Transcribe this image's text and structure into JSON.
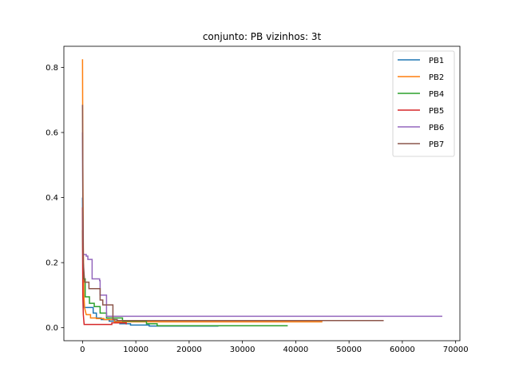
{
  "chart_data": {
    "type": "line",
    "title": "conjunto: PB vizinhos: 3t",
    "xlabel": "",
    "ylabel": "",
    "xlim": [
      -3500,
      70800
    ],
    "ylim": [
      -0.04,
      0.865
    ],
    "xticks": [
      0,
      10000,
      20000,
      30000,
      40000,
      50000,
      60000,
      70000
    ],
    "xtick_labels": [
      "0",
      "10000",
      "20000",
      "30000",
      "40000",
      "50000",
      "60000",
      "70000"
    ],
    "yticks": [
      0.0,
      0.2,
      0.4,
      0.6,
      0.8
    ],
    "ytick_labels": [
      "0.0",
      "0.2",
      "0.4",
      "0.6",
      "0.8"
    ],
    "grid": false,
    "legend_position": "top-right",
    "series": [
      {
        "name": "PB1",
        "color": "#1f77b4",
        "points": [
          [
            0,
            0.4
          ],
          [
            60,
            0.15
          ],
          [
            150,
            0.08
          ],
          [
            300,
            0.062
          ],
          [
            2000,
            0.062
          ],
          [
            2000,
            0.045
          ],
          [
            2600,
            0.045
          ],
          [
            2600,
            0.03
          ],
          [
            3500,
            0.03
          ],
          [
            3500,
            0.025
          ],
          [
            5000,
            0.025
          ],
          [
            5000,
            0.02
          ],
          [
            7000,
            0.02
          ],
          [
            7000,
            0.012
          ],
          [
            9000,
            0.012
          ],
          [
            9000,
            0.008
          ],
          [
            12500,
            0.008
          ],
          [
            12500,
            0.005
          ],
          [
            25500,
            0.005
          ]
        ]
      },
      {
        "name": "PB2",
        "color": "#ff7f0e",
        "points": [
          [
            0,
            0.825
          ],
          [
            60,
            0.5
          ],
          [
            150,
            0.25
          ],
          [
            250,
            0.1
          ],
          [
            400,
            0.06
          ],
          [
            700,
            0.04
          ],
          [
            1500,
            0.04
          ],
          [
            1500,
            0.03
          ],
          [
            2600,
            0.03
          ],
          [
            2600,
            0.028
          ],
          [
            4000,
            0.028
          ],
          [
            4000,
            0.025
          ],
          [
            6000,
            0.025
          ],
          [
            6000,
            0.018
          ],
          [
            45000,
            0.018
          ]
        ]
      },
      {
        "name": "PB4",
        "color": "#2ca02c",
        "points": [
          [
            0,
            0.3
          ],
          [
            80,
            0.2
          ],
          [
            200,
            0.15
          ],
          [
            500,
            0.15
          ],
          [
            500,
            0.095
          ],
          [
            1300,
            0.095
          ],
          [
            1300,
            0.075
          ],
          [
            2200,
            0.075
          ],
          [
            2200,
            0.065
          ],
          [
            3300,
            0.065
          ],
          [
            3300,
            0.045
          ],
          [
            4500,
            0.045
          ],
          [
            4500,
            0.03
          ],
          [
            7500,
            0.03
          ],
          [
            7500,
            0.02
          ],
          [
            12000,
            0.02
          ],
          [
            12000,
            0.012
          ],
          [
            14000,
            0.012
          ],
          [
            14000,
            0.006
          ],
          [
            38500,
            0.006
          ]
        ]
      },
      {
        "name": "PB5",
        "color": "#d62728",
        "points": [
          [
            0,
            0.37
          ],
          [
            50,
            0.1
          ],
          [
            150,
            0.04
          ],
          [
            300,
            0.01
          ],
          [
            5500,
            0.01
          ],
          [
            5500,
            0.015
          ],
          [
            8200,
            0.015
          ],
          [
            8200,
            0.01
          ]
        ]
      },
      {
        "name": "PB6",
        "color": "#9467bd",
        "points": [
          [
            0,
            0.6
          ],
          [
            60,
            0.35
          ],
          [
            150,
            0.225
          ],
          [
            700,
            0.225
          ],
          [
            700,
            0.22
          ],
          [
            1000,
            0.22
          ],
          [
            1000,
            0.21
          ],
          [
            1800,
            0.21
          ],
          [
            1800,
            0.15
          ],
          [
            3200,
            0.15
          ],
          [
            3200,
            0.145
          ],
          [
            3300,
            0.145
          ],
          [
            3300,
            0.1
          ],
          [
            4500,
            0.1
          ],
          [
            4500,
            0.035
          ],
          [
            67500,
            0.035
          ]
        ]
      },
      {
        "name": "PB7",
        "color": "#8c564b",
        "points": [
          [
            0,
            0.685
          ],
          [
            60,
            0.4
          ],
          [
            150,
            0.2
          ],
          [
            400,
            0.14
          ],
          [
            1200,
            0.14
          ],
          [
            1200,
            0.12
          ],
          [
            3300,
            0.12
          ],
          [
            3300,
            0.085
          ],
          [
            3800,
            0.085
          ],
          [
            3800,
            0.07
          ],
          [
            5700,
            0.07
          ],
          [
            5700,
            0.025
          ],
          [
            6500,
            0.025
          ],
          [
            6500,
            0.022
          ],
          [
            56500,
            0.022
          ]
        ]
      }
    ]
  }
}
